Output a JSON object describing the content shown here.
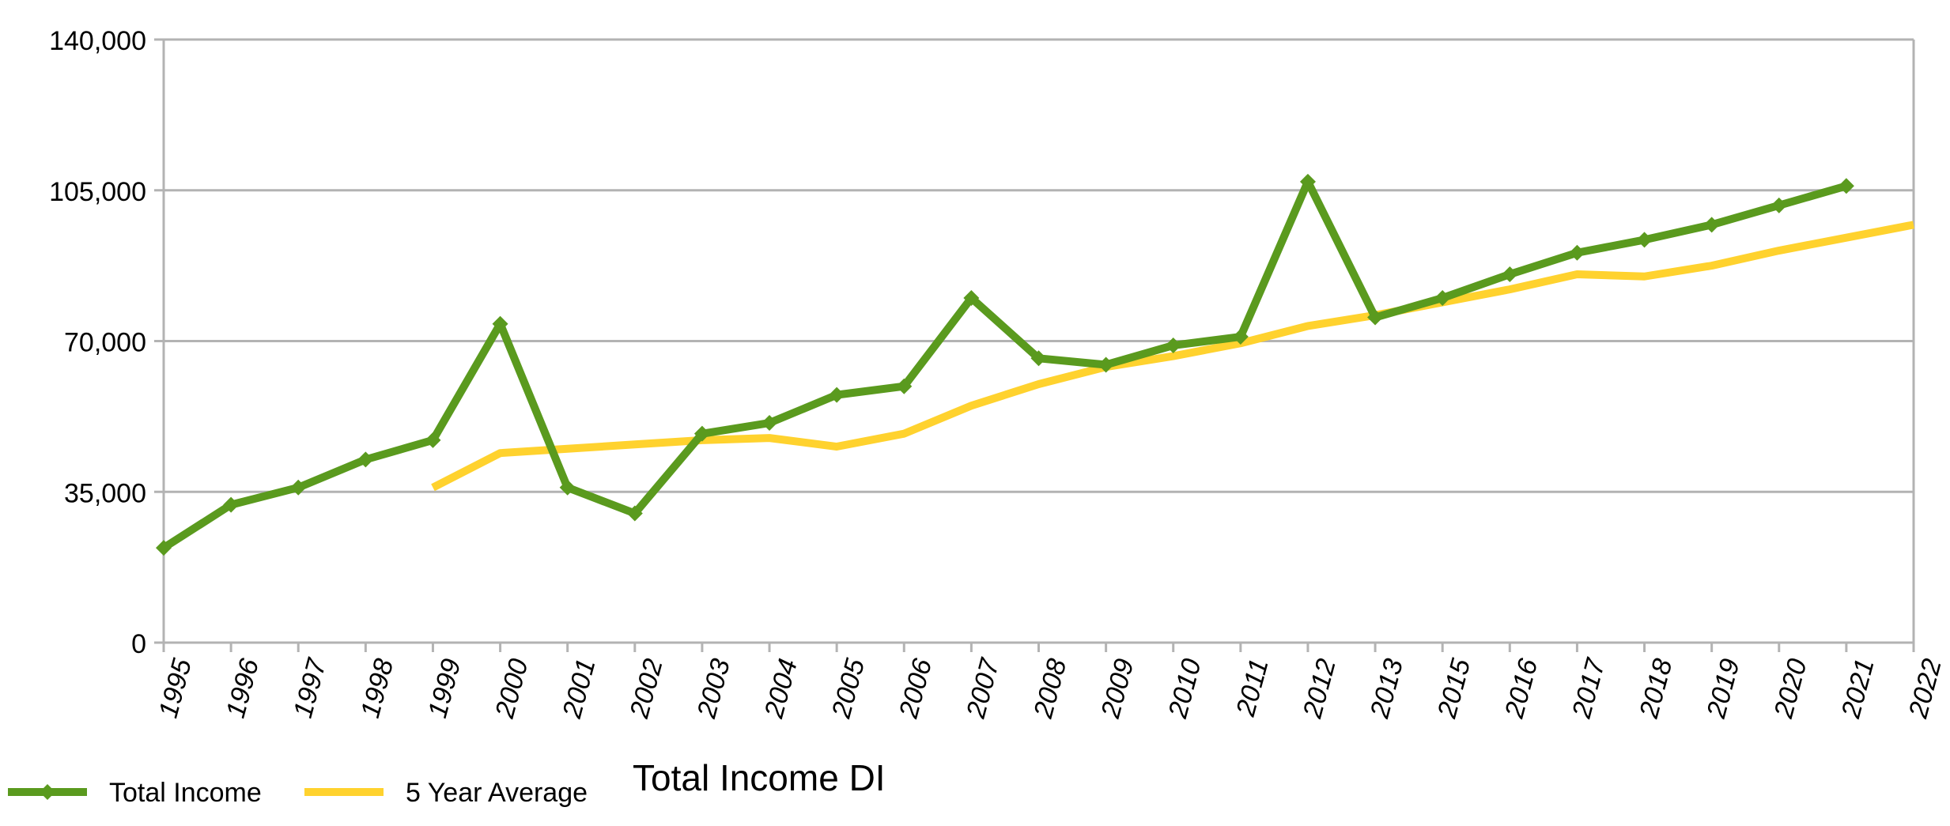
{
  "chart_data": {
    "type": "line",
    "title": "Total Income DI",
    "xlabel": "",
    "ylabel": "",
    "categories": [
      "1995",
      "1996",
      "1997",
      "1998",
      "1999",
      "2000",
      "2001",
      "2002",
      "2003",
      "2004",
      "2005",
      "2006",
      "2007",
      "2008",
      "2009",
      "2010",
      "2011",
      "2012",
      "2013",
      "2015",
      "2016",
      "2017",
      "2018",
      "2019",
      "2020",
      "2021",
      "2022"
    ],
    "y_ticks": [
      "0",
      "35,000",
      "70,000",
      "105,000",
      "140,000"
    ],
    "y_tick_values": [
      0,
      35000,
      70000,
      105000,
      140000
    ],
    "ylim": [
      0,
      140000
    ],
    "grid": "horizontal",
    "legend_position": "bottom-left",
    "series": [
      {
        "name": "Total Income",
        "color": "#5a9a1e",
        "marker": "diamond",
        "values": [
          22000,
          32000,
          36000,
          42500,
          47000,
          74000,
          36000,
          30000,
          48500,
          51000,
          57500,
          59500,
          80000,
          66000,
          64500,
          69000,
          71000,
          107000,
          75500,
          80000,
          85500,
          90500,
          93500,
          97000,
          101500,
          106000,
          null
        ]
      },
      {
        "name": "5 Year Average",
        "color": "#ffd22e",
        "marker": "none",
        "values": [
          null,
          null,
          null,
          null,
          36000,
          44000,
          45000,
          46000,
          47000,
          47500,
          45500,
          48500,
          55000,
          60000,
          64000,
          66500,
          69500,
          73500,
          76000,
          79000,
          82000,
          85500,
          85000,
          87500,
          91000,
          94000,
          97000
        ]
      }
    ]
  }
}
